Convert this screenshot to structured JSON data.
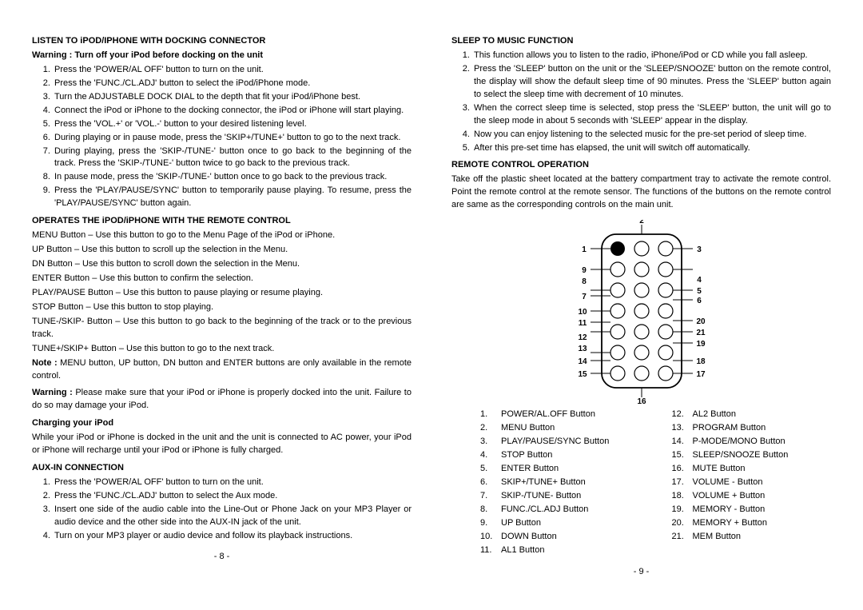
{
  "left": {
    "sec1": {
      "title": "LISTEN TO iPOD/IPHONE WITH DOCKING CONNECTOR",
      "warning": "Warning : Turn off your iPod before docking on the unit",
      "items": [
        "Press the 'POWER/AL OFF' button to turn on the unit.",
        "Press the 'FUNC./CL.ADJ' button to select the iPod/iPhone mode.",
        "Turn the ADJUSTABLE DOCK DIAL to the depth that fit your iPod/iPhone best.",
        "Connect the iPod or iPhone to the docking connector, the iPod or iPhone will start playing.",
        "Press the 'VOL.+' or 'VOL.-' button to your desired listening level.",
        "During playing or in pause mode, press the 'SKIP+/TUNE+' button to go to the next track.",
        "During playing, press the 'SKIP-/TUNE-' button once to go back to the beginning of the track. Press the 'SKIP-/TUNE-' button twice to go back to the previous track.",
        "In pause mode, press the 'SKIP-/TUNE-' button once to go back to the previous track.",
        "Press the 'PLAY/PAUSE/SYNC' button to temporarily pause playing. To resume, press the 'PLAY/PAUSE/SYNC' button again."
      ]
    },
    "sec2": {
      "title": "OPERATES THE iPOD/iPHONE WITH THE REMOTE CONTROL",
      "lines": [
        "MENU Button – Use this button to go to the Menu Page of the iPod or iPhone.",
        "UP Button – Use this button to scroll up the selection in the Menu.",
        "DN Button – Use this button to scroll down the selection in the Menu.",
        "ENTER Button – Use this button to confirm the selection.",
        "PLAY/PAUSE Button – Use this button to pause playing or resume playing.",
        "STOP Button – Use this button to stop playing.",
        "TUNE-/SKIP- Button – Use this button to go back to the beginning of the track or to the previous track.",
        "TUNE+/SKIP+ Button – Use this button to go to the next track."
      ],
      "note_label": "Note :",
      "note_text": " MENU button, UP button, DN button and ENTER buttons are only available in the remote control.",
      "warn_label": "Warning :",
      "warn_text": " Please make sure that your iPod or iPhone is properly docked into the unit. Failure to do so may damage your iPod."
    },
    "sec3": {
      "title": "Charging your iPod",
      "text": "While your iPod or iPhone is docked in the unit and the unit is connected to AC power, your iPod or iPhone will recharge until your iPod or iPhone is fully charged."
    },
    "sec4": {
      "title": "AUX-IN CONNECTION",
      "items": [
        "Press the 'POWER/AL OFF' button to turn on the unit.",
        "Press the 'FUNC./CL.ADJ' button to select the Aux mode.",
        "Insert one side of the audio cable into the Line-Out or Phone Jack on your MP3 Player or audio device and the other side into the AUX-IN jack of the unit.",
        "Turn on your MP3 player or audio device and follow its playback instructions."
      ]
    },
    "page_num": "- 8 -"
  },
  "right": {
    "sec1": {
      "title": "SLEEP TO MUSIC FUNCTION",
      "items": [
        "This function allows you to listen to the radio, iPhone/iPod or CD while you fall asleep.",
        "Press the 'SLEEP' button on the unit or the 'SLEEP/SNOOZE' button on the remote control, the display will show the default sleep time of 90 minutes. Press the 'SLEEP' button again to select the sleep time with decrement of 10 minutes.",
        "When the correct sleep time is selected, stop press the 'SLEEP' button, the unit will go to the sleep mode in about 5 seconds with 'SLEEP' appear in the display.",
        "Now you can enjoy listening to the selected music for the pre-set period of sleep time.",
        "After this pre-set time has elapsed, the unit will switch off automatically."
      ]
    },
    "sec2": {
      "title": "REMOTE CONTROL OPERATION",
      "text": "Take off the plastic sheet located at the battery compartment tray to activate the remote control. Point the remote control at the remote sensor. The functions of the buttons on the remote control are same as the corresponding controls on the main unit."
    },
    "diagram": {
      "labels": {
        "l1": "1",
        "l2": "2",
        "l3": "3",
        "l4": "4",
        "l5": "5",
        "l6": "6",
        "l7": "7",
        "l8": "8",
        "l9": "9",
        "l10": "10",
        "l11": "11",
        "l12": "12",
        "l13": "13",
        "l14": "14",
        "l15": "15",
        "l16": "16",
        "l17": "17",
        "l18": "18",
        "l19": "19",
        "l20": "20",
        "l21": "21"
      }
    },
    "buttons": {
      "col1": [
        {
          "n": "1.",
          "t": "POWER/AL.OFF Button"
        },
        {
          "n": "2.",
          "t": "MENU Button"
        },
        {
          "n": "3.",
          "t": "PLAY/PAUSE/SYNC Button"
        },
        {
          "n": "4.",
          "t": "STOP Button"
        },
        {
          "n": "5.",
          "t": "ENTER Button"
        },
        {
          "n": "6.",
          "t": "SKIP+/TUNE+ Button"
        },
        {
          "n": "7.",
          "t": "SKIP-/TUNE- Button"
        },
        {
          "n": "8.",
          "t": "FUNC./CL.ADJ Button"
        },
        {
          "n": "9.",
          "t": "UP Button"
        },
        {
          "n": "10.",
          "t": "DOWN Button"
        },
        {
          "n": "11.",
          "t": "AL1 Button"
        }
      ],
      "col2": [
        {
          "n": "12.",
          "t": "AL2 Button"
        },
        {
          "n": "13.",
          "t": "PROGRAM Button"
        },
        {
          "n": "14.",
          "t": "P-MODE/MONO Button"
        },
        {
          "n": "15.",
          "t": "SLEEP/SNOOZE Button"
        },
        {
          "n": "16.",
          "t": "MUTE Button"
        },
        {
          "n": "17.",
          "t": "VOLUME - Button"
        },
        {
          "n": "18.",
          "t": "VOLUME + Button"
        },
        {
          "n": "19.",
          "t": "MEMORY - Button"
        },
        {
          "n": "20.",
          "t": "MEMORY + Button"
        },
        {
          "n": "21.",
          "t": "MEM Button"
        }
      ]
    },
    "page_num": "- 9 -"
  }
}
